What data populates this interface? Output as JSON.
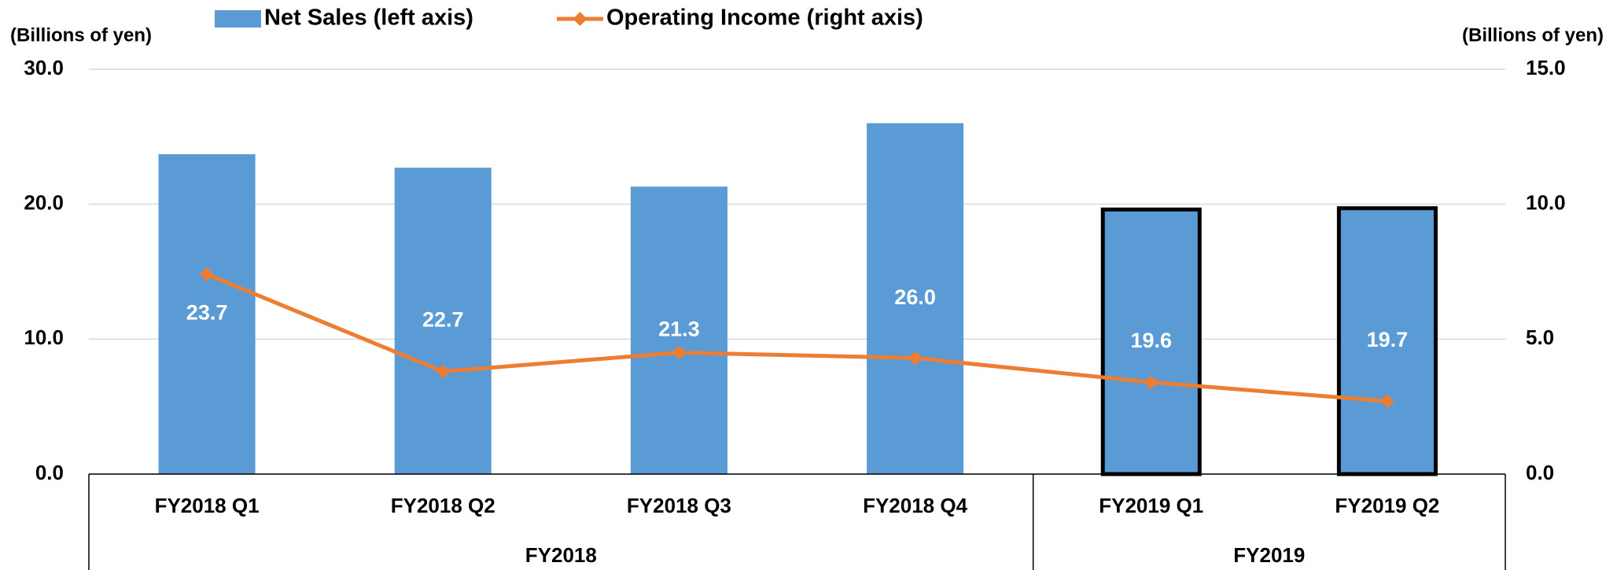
{
  "chart_data": {
    "type": "bar_line",
    "ylabel": "(Billions of yen)",
    "y2label": "(Billions of yen)",
    "categories": [
      "FY2018 Q1",
      "FY2018 Q2",
      "FY2018 Q3",
      "FY2018 Q4",
      "FY2019 Q1",
      "FY2019 Q2"
    ],
    "groups": [
      {
        "label": "FY2018",
        "span": 4,
        "outlined": false
      },
      {
        "label": "FY2019",
        "span": 2,
        "outlined": true
      }
    ],
    "outline_color": "#000000",
    "series": [
      {
        "name": "Net Sales (left axis)",
        "type": "bar",
        "color": "#5b9bd5",
        "axis": "y",
        "values": [
          23.7,
          22.7,
          21.3,
          26.0,
          19.6,
          19.7
        ],
        "value_labels": [
          "23.7",
          "22.7",
          "21.3",
          "26.0",
          "19.6",
          "19.7"
        ]
      },
      {
        "name": "Operating Income (right axis)",
        "type": "line",
        "color": "#ed7d31",
        "axis": "y2",
        "values": [
          7.4,
          3.8,
          4.5,
          4.3,
          3.4,
          2.7
        ]
      }
    ],
    "ylim": [
      0,
      30
    ],
    "yticks": [
      {
        "value": 0,
        "label": "0.0"
      },
      {
        "value": 10,
        "label": "10.0"
      },
      {
        "value": 20,
        "label": "20.0"
      },
      {
        "value": 30,
        "label": "30.0"
      }
    ],
    "y2lim": [
      0,
      15
    ],
    "y2ticks": [
      {
        "value": 0,
        "label": "0.0"
      },
      {
        "value": 5,
        "label": "5.0"
      },
      {
        "value": 10,
        "label": "10.0"
      },
      {
        "value": 15,
        "label": "15.0"
      }
    ],
    "grid": true,
    "legend": "top"
  }
}
